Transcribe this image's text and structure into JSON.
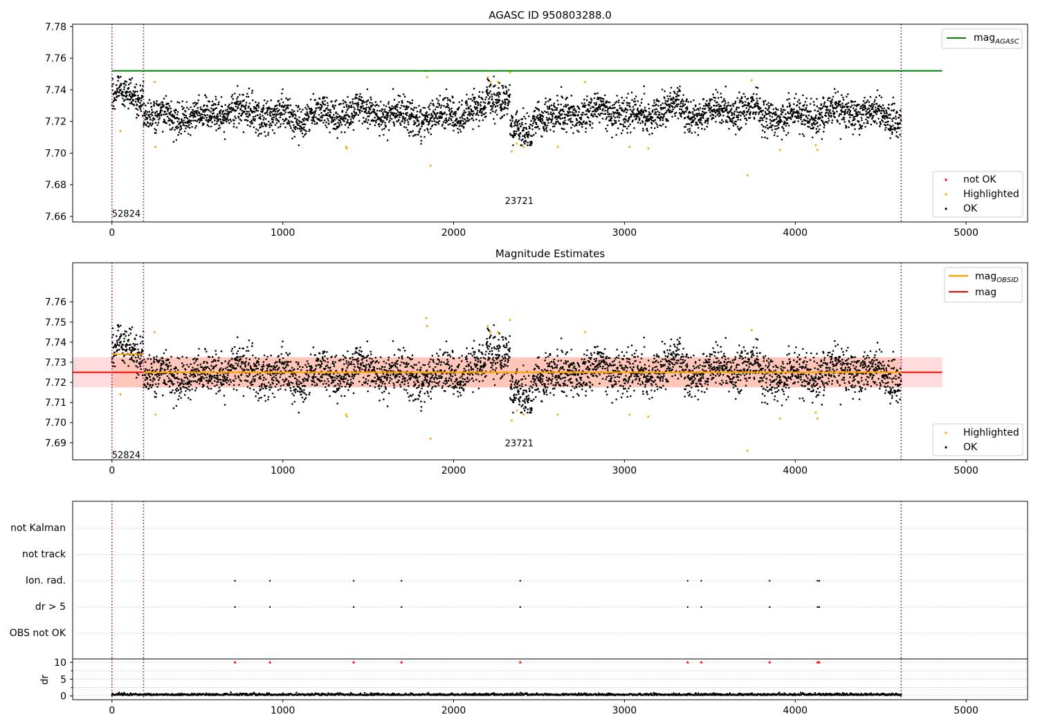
{
  "figure": {
    "background": "#ffffff"
  },
  "panel1": {
    "title": "AGASC ID 950803288.0",
    "xlim": [
      -230,
      5360
    ],
    "ylim": [
      7.6565,
      7.7815
    ],
    "xticks": [
      0,
      1000,
      2000,
      3000,
      4000,
      5000
    ],
    "yticks": [
      7.66,
      7.68,
      7.7,
      7.72,
      7.74,
      7.76,
      7.78
    ],
    "agasc_mag": 7.752,
    "agasc_line_x_end": 4860,
    "legend_line_label": "mag",
    "legend_line_sub": "AGASC",
    "legend_markers": [
      {
        "label": "not OK",
        "color": "#ff0000"
      },
      {
        "label": "Highlighted",
        "color": "#ffa500"
      },
      {
        "label": "OK",
        "color": "#000000"
      }
    ],
    "obsid_labels": [
      {
        "text": "52824",
        "x": 0,
        "y": 7.662
      },
      {
        "text": "23721",
        "x": 2300,
        "y": 7.67
      }
    ]
  },
  "panel2": {
    "title": "Magnitude Estimates",
    "xlim": [
      -230,
      5360
    ],
    "ylim": [
      7.6815,
      7.7795
    ],
    "xticks": [
      0,
      1000,
      2000,
      3000,
      4000,
      5000
    ],
    "yticks": [
      7.69,
      7.7,
      7.71,
      7.72,
      7.73,
      7.74,
      7.75,
      7.76
    ],
    "mag": 7.725,
    "mag_band": [
      7.7175,
      7.7325
    ],
    "mag_line_x_end": 4860,
    "obsid_mag_segments": [
      {
        "x0": 0,
        "x1": 180,
        "mag": 7.734
      },
      {
        "x0": 180,
        "x1": 4620,
        "mag": 7.725
      }
    ],
    "legend_lines": [
      {
        "label": "mag",
        "sub": "OBSID",
        "color": "#ffa500"
      },
      {
        "label": "mag",
        "sub": "",
        "color": "#ff0000"
      }
    ],
    "legend_markers": [
      {
        "label": "Highlighted",
        "color": "#ffa500"
      },
      {
        "label": "OK",
        "color": "#000000"
      }
    ],
    "obsid_labels": [
      {
        "text": "52824",
        "x": 0,
        "y": 7.684
      },
      {
        "text": "23721",
        "x": 2300,
        "y": 7.69
      }
    ]
  },
  "panel3": {
    "flag_labels": [
      "OBS not OK",
      "dr > 5",
      "Ion. rad.",
      "not track",
      "not Kalman"
    ],
    "flag_x": [
      720,
      925,
      1415,
      1695,
      2390,
      3370,
      3450,
      3850,
      4130,
      4140
    ],
    "dr_ylabel": "dr",
    "dr_yticks": [
      0,
      5,
      10
    ],
    "dr_markers_x": [
      720,
      925,
      1415,
      1695,
      2390,
      3370,
      3450,
      3850,
      4130,
      4140
    ],
    "dr_marker_value": 10
  },
  "obsid_boundaries": [
    0,
    185,
    4620
  ],
  "colors": {
    "ok": "#000000",
    "highlighted": "#ffa500",
    "not_ok": "#ff0000",
    "agasc_line": "#008000",
    "mag_line": "#ff0000",
    "obsid_line": "#ffa500",
    "band": "#ffc0c0",
    "boundary": "#800080",
    "grid": "#b0b0b0"
  },
  "chart_data": [
    {
      "type": "scatter",
      "title": "AGASC ID 950803288.0",
      "xlim": [
        -230,
        5360
      ],
      "ylim": [
        7.6565,
        7.7815
      ],
      "series": [
        {
          "name": "OK",
          "x_range": [
            0,
            4620
          ],
          "y_approx_mean": 7.725,
          "y_approx_spread": [
            7.705,
            7.748
          ]
        },
        {
          "name": "Highlighted",
          "x": [
            50,
            250,
            255,
            1370,
            1375,
            1840,
            1845,
            1865,
            2200,
            2215,
            2260,
            2330,
            2340,
            2370,
            2410,
            2610,
            2770,
            3030,
            3140,
            3720,
            3745,
            3910,
            4120,
            4130
          ],
          "y": [
            7.714,
            7.745,
            7.704,
            7.704,
            7.703,
            7.752,
            7.748,
            7.692,
            7.748,
            7.745,
            7.745,
            7.751,
            7.701,
            7.706,
            7.704,
            7.704,
            7.745,
            7.704,
            7.703,
            7.686,
            7.746,
            7.702,
            7.705,
            7.702
          ]
        },
        {
          "name": "mag_AGASC",
          "y": 7.752
        }
      ]
    },
    {
      "type": "scatter",
      "title": "Magnitude Estimates",
      "xlim": [
        -230,
        5360
      ],
      "ylim": [
        7.6815,
        7.7795
      ],
      "series": [
        {
          "name": "OK",
          "x_range": [
            0,
            4620
          ],
          "y_approx_mean": 7.725,
          "y_approx_spread": [
            7.705,
            7.748
          ]
        },
        {
          "name": "Highlighted",
          "x": [
            50,
            250,
            255,
            1370,
            1375,
            1840,
            1845,
            1865,
            2200,
            2215,
            2260,
            2330,
            2340,
            2370,
            2410,
            2610,
            2770,
            3030,
            3140,
            3720,
            3745,
            3910,
            4120,
            4130
          ],
          "y": [
            7.714,
            7.745,
            7.704,
            7.704,
            7.703,
            7.752,
            7.748,
            7.692,
            7.748,
            7.745,
            7.745,
            7.751,
            7.701,
            7.706,
            7.704,
            7.704,
            7.745,
            7.704,
            7.703,
            7.686,
            7.746,
            7.702,
            7.705,
            7.702
          ]
        },
        {
          "name": "mag",
          "y": 7.725,
          "band": [
            7.7175,
            7.7325
          ]
        },
        {
          "name": "mag_OBSID",
          "segments": [
            {
              "x": [
                0,
                180
              ],
              "y": 7.734
            },
            {
              "x": [
                180,
                4620
              ],
              "y": 7.725
            }
          ]
        }
      ]
    },
    {
      "type": "scatter",
      "title": "",
      "categories": [
        "OBS not OK",
        "dr > 5",
        "Ion. rad.",
        "not track",
        "not Kalman"
      ],
      "series": [
        {
          "name": "dr > 5",
          "x": [
            720,
            925,
            1415,
            1695,
            2390,
            3370,
            3450,
            3850,
            4130,
            4140
          ]
        },
        {
          "name": "Ion. rad.",
          "x": [
            720,
            925,
            1415,
            1695,
            2390,
            3370,
            3450,
            3850,
            4130,
            4140
          ]
        }
      ]
    },
    {
      "type": "scatter",
      "title": "",
      "ylabel": "dr",
      "ylim": [
        -1,
        11
      ],
      "series": [
        {
          "name": "dr",
          "x_range": [
            0,
            4620
          ],
          "y_approx": 0.4
        },
        {
          "name": "dr > 5 (clipped)",
          "x": [
            720,
            925,
            1415,
            1695,
            2390,
            3370,
            3450,
            3850,
            4130,
            4140
          ],
          "y": [
            10,
            10,
            10,
            10,
            10,
            10,
            10,
            10,
            10,
            10
          ]
        }
      ]
    }
  ]
}
